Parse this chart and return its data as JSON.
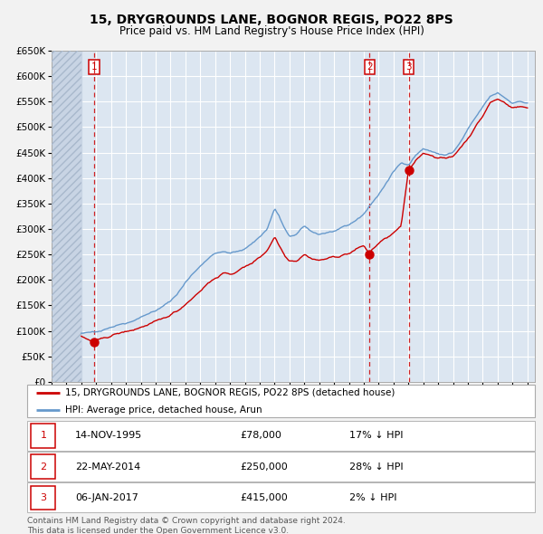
{
  "title": "15, DRYGROUNDS LANE, BOGNOR REGIS, PO22 8PS",
  "subtitle": "Price paid vs. HM Land Registry's House Price Index (HPI)",
  "fig_bg_color": "#f0f0f0",
  "plot_bg_color": "#dce6f1",
  "grid_color": "#ffffff",
  "red_line_color": "#cc0000",
  "blue_line_color": "#6699cc",
  "ylim": [
    0,
    650000
  ],
  "yticks": [
    0,
    50000,
    100000,
    150000,
    200000,
    250000,
    300000,
    350000,
    400000,
    450000,
    500000,
    550000,
    600000,
    650000
  ],
  "xlim_start": 1993.0,
  "xlim_end": 2025.5,
  "hatch_end": 1995.0,
  "sale_dates": [
    1995.87,
    2014.39,
    2017.01
  ],
  "sale_prices": [
    78000,
    250000,
    415000
  ],
  "sale_labels": [
    "1",
    "2",
    "3"
  ],
  "legend_entries": [
    "15, DRYGROUNDS LANE, BOGNOR REGIS, PO22 8PS (detached house)",
    "HPI: Average price, detached house, Arun"
  ],
  "table_rows": [
    {
      "num": "1",
      "date": "14-NOV-1995",
      "price": "£78,000",
      "note": "17% ↓ HPI"
    },
    {
      "num": "2",
      "date": "22-MAY-2014",
      "price": "£250,000",
      "note": "28% ↓ HPI"
    },
    {
      "num": "3",
      "date": "06-JAN-2017",
      "price": "£415,000",
      "note": "2% ↓ HPI"
    }
  ],
  "footer": "Contains HM Land Registry data © Crown copyright and database right 2024.\nThis data is licensed under the Open Government Licence v3.0.",
  "hpi_anchors": [
    [
      1995.0,
      94000
    ],
    [
      1995.5,
      96000
    ],
    [
      1996.0,
      100000
    ],
    [
      1996.5,
      103000
    ],
    [
      1997.0,
      108000
    ],
    [
      1997.5,
      112000
    ],
    [
      1998.0,
      116000
    ],
    [
      1998.5,
      120000
    ],
    [
      1999.0,
      128000
    ],
    [
      1999.5,
      133000
    ],
    [
      2000.0,
      140000
    ],
    [
      2000.5,
      148000
    ],
    [
      2001.0,
      158000
    ],
    [
      2001.5,
      175000
    ],
    [
      2002.0,
      195000
    ],
    [
      2002.5,
      212000
    ],
    [
      2003.0,
      228000
    ],
    [
      2003.5,
      242000
    ],
    [
      2004.0,
      252000
    ],
    [
      2004.5,
      255000
    ],
    [
      2005.0,
      252000
    ],
    [
      2005.5,
      256000
    ],
    [
      2006.0,
      262000
    ],
    [
      2006.5,
      272000
    ],
    [
      2007.0,
      285000
    ],
    [
      2007.5,
      300000
    ],
    [
      2008.0,
      340000
    ],
    [
      2008.3,
      325000
    ],
    [
      2008.7,
      298000
    ],
    [
      2009.0,
      285000
    ],
    [
      2009.5,
      290000
    ],
    [
      2010.0,
      305000
    ],
    [
      2010.5,
      295000
    ],
    [
      2011.0,
      290000
    ],
    [
      2011.5,
      293000
    ],
    [
      2012.0,
      295000
    ],
    [
      2012.5,
      300000
    ],
    [
      2013.0,
      308000
    ],
    [
      2013.5,
      318000
    ],
    [
      2014.0,
      330000
    ],
    [
      2014.39,
      345000
    ],
    [
      2015.0,
      368000
    ],
    [
      2015.5,
      390000
    ],
    [
      2016.0,
      412000
    ],
    [
      2016.5,
      430000
    ],
    [
      2017.01,
      428000
    ],
    [
      2017.5,
      445000
    ],
    [
      2018.0,
      458000
    ],
    [
      2018.5,
      452000
    ],
    [
      2019.0,
      448000
    ],
    [
      2019.5,
      445000
    ],
    [
      2020.0,
      450000
    ],
    [
      2020.5,
      470000
    ],
    [
      2021.0,
      495000
    ],
    [
      2021.5,
      518000
    ],
    [
      2022.0,
      540000
    ],
    [
      2022.5,
      560000
    ],
    [
      2023.0,
      568000
    ],
    [
      2023.5,
      558000
    ],
    [
      2024.0,
      548000
    ],
    [
      2024.5,
      550000
    ],
    [
      2025.0,
      548000
    ]
  ],
  "red_anchors": [
    [
      1995.0,
      88000
    ],
    [
      1995.87,
      78000
    ],
    [
      1996.5,
      86000
    ],
    [
      1997.5,
      95000
    ],
    [
      1998.5,
      102000
    ],
    [
      1999.5,
      112000
    ],
    [
      2000.5,
      124000
    ],
    [
      2001.5,
      140000
    ],
    [
      2002.5,
      165000
    ],
    [
      2003.5,
      193000
    ],
    [
      2004.5,
      213000
    ],
    [
      2005.0,
      210000
    ],
    [
      2005.5,
      218000
    ],
    [
      2006.0,
      225000
    ],
    [
      2006.5,
      234000
    ],
    [
      2007.0,
      245000
    ],
    [
      2007.5,
      258000
    ],
    [
      2008.0,
      285000
    ],
    [
      2008.3,
      268000
    ],
    [
      2008.7,
      248000
    ],
    [
      2009.0,
      238000
    ],
    [
      2009.5,
      238000
    ],
    [
      2010.0,
      250000
    ],
    [
      2010.5,
      242000
    ],
    [
      2011.0,
      238000
    ],
    [
      2011.5,
      242000
    ],
    [
      2012.0,
      245000
    ],
    [
      2012.5,
      248000
    ],
    [
      2013.0,
      252000
    ],
    [
      2013.5,
      260000
    ],
    [
      2014.0,
      268000
    ],
    [
      2014.39,
      250000
    ],
    [
      2014.5,
      258000
    ],
    [
      2015.0,
      272000
    ],
    [
      2015.5,
      282000
    ],
    [
      2016.0,
      292000
    ],
    [
      2016.5,
      305000
    ],
    [
      2017.01,
      415000
    ],
    [
      2017.5,
      435000
    ],
    [
      2018.0,
      450000
    ],
    [
      2018.5,
      445000
    ],
    [
      2019.0,
      440000
    ],
    [
      2019.5,
      438000
    ],
    [
      2020.0,
      443000
    ],
    [
      2020.5,
      460000
    ],
    [
      2021.0,
      478000
    ],
    [
      2021.5,
      500000
    ],
    [
      2022.0,
      522000
    ],
    [
      2022.5,
      548000
    ],
    [
      2023.0,
      555000
    ],
    [
      2023.5,
      548000
    ],
    [
      2024.0,
      538000
    ],
    [
      2024.5,
      540000
    ],
    [
      2025.0,
      538000
    ]
  ]
}
